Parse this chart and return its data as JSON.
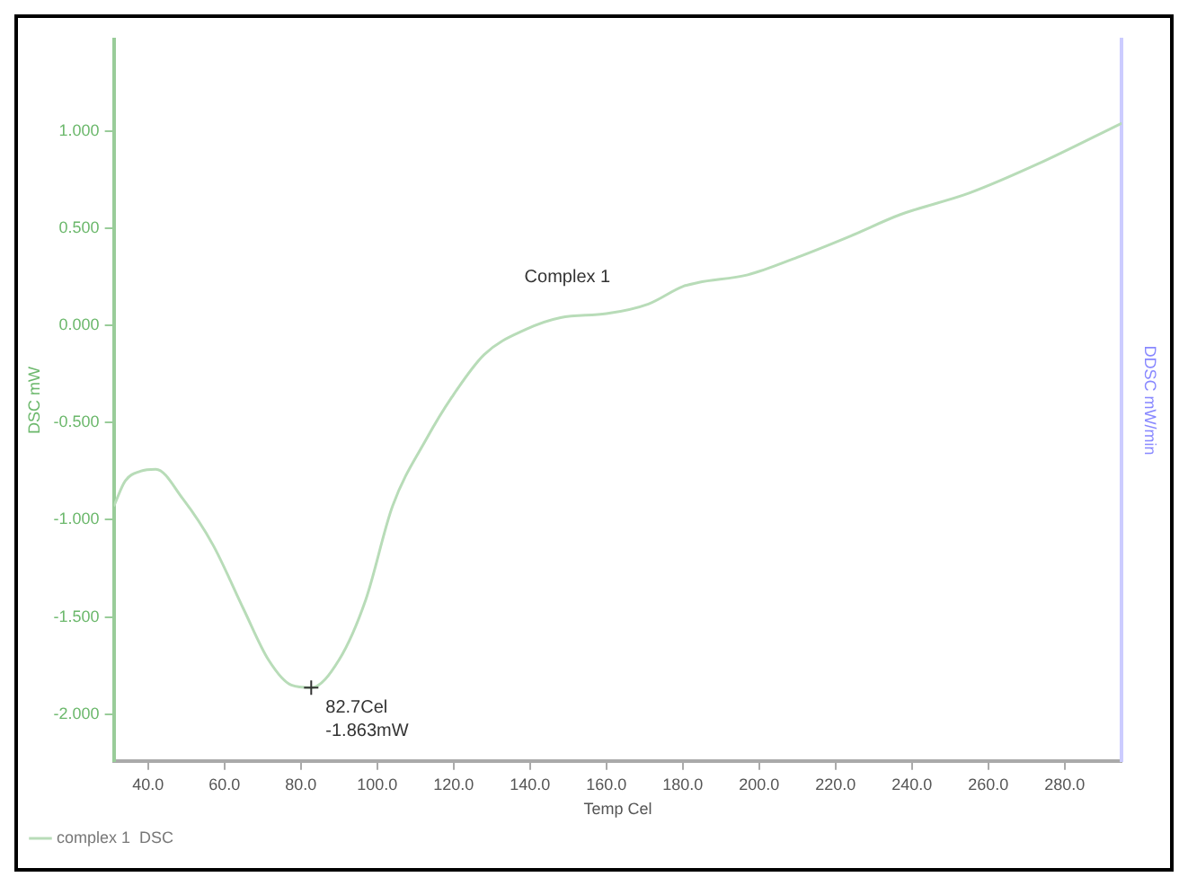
{
  "chart_data": {
    "type": "line",
    "xlabel": "Temp Cel",
    "ylabel": "DSC mW",
    "y2label": "DDSC mW/min",
    "legend": "bottom left",
    "grid": false,
    "marker": "none",
    "line_style": "solid",
    "xlim": [
      31,
      295
    ],
    "ylim": [
      -2.24,
      1.47
    ],
    "xticks": [
      {
        "value": 40,
        "label": "40.0"
      },
      {
        "value": 60,
        "label": "60.0"
      },
      {
        "value": 80,
        "label": "80.0"
      },
      {
        "value": 100,
        "label": "100.0"
      },
      {
        "value": 120,
        "label": "120.0"
      },
      {
        "value": 140,
        "label": "140.0"
      },
      {
        "value": 160,
        "label": "160.0"
      },
      {
        "value": 180,
        "label": "180.0"
      },
      {
        "value": 200,
        "label": "200.0"
      },
      {
        "value": 220,
        "label": "220.0"
      },
      {
        "value": 240,
        "label": "240.0"
      },
      {
        "value": 260,
        "label": "260.0"
      },
      {
        "value": 280,
        "label": "280.0"
      }
    ],
    "yticks": [
      {
        "value": -2,
        "label": "-2.000"
      },
      {
        "value": -1.5,
        "label": "-1.500"
      },
      {
        "value": -1,
        "label": "-1.000"
      },
      {
        "value": -0.5,
        "label": "-0.500"
      },
      {
        "value": 0,
        "label": "0.000"
      },
      {
        "value": 0.5,
        "label": "0.500"
      },
      {
        "value": 1,
        "label": "1.000"
      }
    ],
    "series": [
      {
        "name": "complex 1  DSC",
        "color": "#b8dcb8",
        "x": [
          31,
          34,
          38,
          42,
          49,
          57,
          65,
          71.5,
          77.5,
          82.7,
          90,
          97,
          104,
          113,
          119.5,
          128,
          139,
          148,
          160,
          171,
          180,
          184,
          197,
          210,
          224,
          237,
          255,
          273,
          295
        ],
        "values": [
          -0.93,
          -0.8,
          -0.75,
          -0.74,
          -0.89,
          -1.13,
          -1.46,
          -1.72,
          -1.85,
          -1.863,
          -1.72,
          -1.41,
          -0.93,
          -0.58,
          -0.37,
          -0.15,
          -0.02,
          0.04,
          0.06,
          0.11,
          0.2,
          0.22,
          0.26,
          0.35,
          0.46,
          0.57,
          0.68,
          0.83,
          1.04
        ]
      }
    ],
    "annotations": [
      "Complex 1",
      {
        "text": "82.7Cel\n-1.863mW",
        "x": 82.7,
        "y": -1.863
      }
    ]
  }
}
